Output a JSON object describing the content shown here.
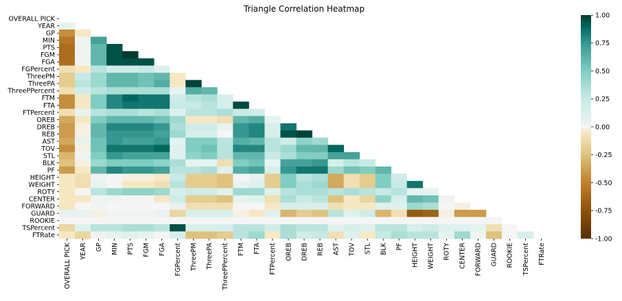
{
  "chart_data": {
    "type": "heatmap",
    "title": "Triangle Correlation Heatmap",
    "mask": "upper-triangle",
    "labels": [
      "OVERALL PICK",
      "YEAR",
      "GP",
      "MIN",
      "PTS",
      "FGM",
      "FGA",
      "FGPercent",
      "ThreePM",
      "ThreePA",
      "ThreePPercent",
      "FTM",
      "FTA",
      "FTPercent",
      "OREB",
      "DREB",
      "REB",
      "AST",
      "TOV",
      "STL",
      "BLK",
      "PF",
      "HEIGHT",
      "WEIGHT",
      "ROTY",
      "CENTER",
      "FORWARD",
      "GUARD",
      "ROOKIE",
      "TSPercent",
      "FTRate"
    ],
    "matrix": [
      [],
      [
        0.05
      ],
      [
        -0.45,
        -0.05
      ],
      [
        -0.55,
        0.02,
        0.7
      ],
      [
        -0.6,
        0.02,
        0.6,
        0.95
      ],
      [
        -0.6,
        0.02,
        0.6,
        0.95,
        1.0
      ],
      [
        -0.6,
        0.02,
        0.6,
        0.95,
        0.95,
        0.95
      ],
      [
        -0.1,
        -0.05,
        0.3,
        0.2,
        0.2,
        0.25,
        0.1
      ],
      [
        -0.2,
        0.25,
        0.4,
        0.6,
        0.6,
        0.55,
        0.6,
        -0.05
      ],
      [
        -0.2,
        0.3,
        0.4,
        0.6,
        0.6,
        0.55,
        0.65,
        -0.05,
        0.98
      ],
      [
        -0.1,
        0.2,
        0.3,
        0.35,
        0.35,
        0.35,
        0.35,
        0.05,
        0.65,
        0.6
      ],
      [
        -0.45,
        -0.05,
        0.5,
        0.8,
        0.9,
        0.85,
        0.85,
        0.2,
        0.3,
        0.35,
        0.15
      ],
      [
        -0.45,
        -0.05,
        0.5,
        0.8,
        0.85,
        0.85,
        0.85,
        0.25,
        0.25,
        0.3,
        0.15,
        0.97
      ],
      [
        -0.1,
        0.05,
        0.3,
        0.35,
        0.35,
        0.3,
        0.35,
        0.1,
        0.3,
        0.3,
        0.35,
        0.25,
        0.2
      ],
      [
        -0.35,
        -0.05,
        0.5,
        0.6,
        0.6,
        0.6,
        0.55,
        0.4,
        -0.05,
        -0.05,
        -0.1,
        0.6,
        0.65,
        0.05
      ],
      [
        -0.4,
        -0.02,
        0.6,
        0.8,
        0.8,
        0.8,
        0.75,
        0.35,
        0.2,
        0.2,
        0.05,
        0.75,
        0.8,
        0.15,
        0.85
      ],
      [
        -0.4,
        -0.02,
        0.6,
        0.75,
        0.75,
        0.75,
        0.7,
        0.4,
        0.15,
        0.15,
        0.0,
        0.75,
        0.8,
        0.15,
        0.95,
        0.98
      ],
      [
        -0.35,
        0.05,
        0.55,
        0.75,
        0.7,
        0.7,
        0.75,
        0.05,
        0.5,
        0.5,
        0.3,
        0.65,
        0.6,
        0.3,
        0.2,
        0.45,
        0.4
      ],
      [
        -0.45,
        -0.02,
        0.55,
        0.85,
        0.85,
        0.85,
        0.9,
        0.1,
        0.5,
        0.55,
        0.3,
        0.8,
        0.8,
        0.3,
        0.4,
        0.6,
        0.6,
        0.9
      ],
      [
        -0.3,
        0.02,
        0.5,
        0.75,
        0.7,
        0.7,
        0.7,
        0.1,
        0.45,
        0.5,
        0.3,
        0.6,
        0.6,
        0.25,
        0.35,
        0.5,
        0.5,
        0.7,
        0.7
      ],
      [
        -0.25,
        -0.02,
        0.4,
        0.5,
        0.5,
        0.5,
        0.45,
        0.35,
        0.05,
        0.05,
        -0.1,
        0.5,
        0.55,
        0.05,
        0.7,
        0.7,
        0.75,
        0.15,
        0.3,
        0.25
      ],
      [
        -0.4,
        -0.05,
        0.6,
        0.8,
        0.75,
        0.75,
        0.7,
        0.3,
        0.3,
        0.35,
        0.1,
        0.65,
        0.7,
        0.15,
        0.75,
        0.85,
        0.85,
        0.4,
        0.55,
        0.5,
        0.6
      ],
      [
        -0.05,
        -0.1,
        0.02,
        0.0,
        -0.02,
        -0.02,
        -0.05,
        0.25,
        -0.2,
        -0.2,
        -0.25,
        0.0,
        0.05,
        -0.2,
        0.5,
        0.3,
        0.35,
        -0.35,
        -0.1,
        -0.2,
        0.5,
        0.2
      ],
      [
        -0.05,
        -0.1,
        0.05,
        0.0,
        -0.05,
        -0.05,
        -0.1,
        0.3,
        -0.2,
        -0.2,
        -0.25,
        0.05,
        0.1,
        -0.2,
        0.5,
        0.35,
        0.4,
        -0.35,
        -0.1,
        -0.2,
        0.5,
        0.25,
        0.85
      ],
      [
        -0.05,
        0.0,
        0.3,
        0.4,
        0.45,
        0.45,
        0.4,
        0.15,
        0.2,
        0.2,
        0.1,
        0.4,
        0.4,
        0.1,
        0.3,
        0.35,
        0.35,
        0.3,
        0.35,
        0.3,
        0.25,
        0.3,
        0.05,
        0.05
      ],
      [
        -0.05,
        -0.05,
        0.02,
        0.02,
        0.0,
        0.0,
        -0.05,
        0.2,
        -0.2,
        -0.2,
        -0.25,
        0.05,
        0.1,
        -0.1,
        0.35,
        0.25,
        0.3,
        -0.25,
        -0.05,
        -0.15,
        0.45,
        0.15,
        0.6,
        0.55,
        0.02
      ],
      [
        -0.05,
        0.0,
        0.02,
        0.0,
        0.0,
        0.0,
        0.0,
        0.05,
        -0.1,
        -0.1,
        -0.1,
        0.0,
        0.0,
        -0.05,
        0.15,
        0.15,
        0.15,
        -0.1,
        -0.05,
        -0.05,
        0.1,
        0.1,
        0.4,
        0.35,
        0.0,
        -0.02
      ],
      [
        0.05,
        0.05,
        -0.02,
        0.02,
        0.02,
        0.02,
        0.05,
        -0.15,
        0.15,
        0.15,
        0.15,
        -0.02,
        -0.05,
        0.1,
        -0.3,
        -0.2,
        -0.25,
        0.3,
        0.1,
        0.2,
        -0.3,
        -0.1,
        -0.7,
        -0.65,
        -0.02,
        -0.4,
        -0.4
      ],
      [
        0,
        0,
        0,
        0,
        0,
        0,
        0,
        0,
        0,
        0,
        0,
        0,
        0,
        0,
        0,
        0,
        0,
        0,
        0,
        0,
        0,
        0,
        0,
        0,
        0,
        0,
        0,
        0
      ],
      [
        -0.15,
        0.1,
        0.3,
        0.3,
        0.35,
        0.35,
        0.3,
        0.95,
        0.15,
        0.15,
        0.15,
        0.3,
        0.3,
        0.2,
        0.35,
        0.3,
        0.3,
        0.1,
        0.15,
        0.1,
        0.3,
        0.3,
        0.15,
        0.2,
        0.1,
        0.1,
        0.05,
        -0.1,
        0.0
      ],
      [
        -0.05,
        -0.15,
        0.02,
        0.05,
        0.1,
        0.05,
        0.0,
        0.15,
        -0.25,
        -0.25,
        -0.2,
        0.3,
        0.4,
        -0.05,
        0.35,
        0.2,
        0.25,
        -0.1,
        0.1,
        -0.05,
        0.25,
        0.35,
        0.3,
        0.3,
        0.05,
        0.4,
        0.02,
        -0.25,
        0.0,
        0.15
      ]
    ],
    "colorbar": {
      "cmap": "BrBG",
      "vmin": -1.0,
      "vmax": 1.0,
      "ticks": [
        "-1.00",
        "-0.75",
        "-0.50",
        "-0.25",
        "0.00",
        "0.25",
        "0.50",
        "0.75",
        "1.00"
      ]
    }
  }
}
